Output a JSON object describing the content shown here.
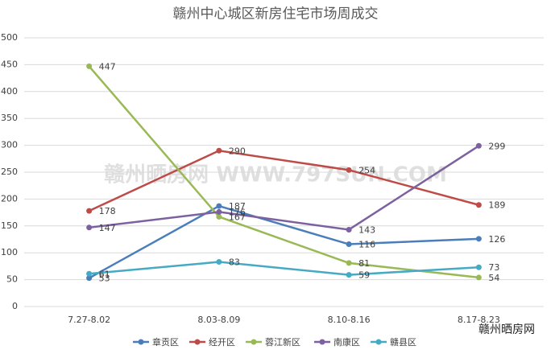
{
  "chart_data": {
    "type": "line",
    "title": "赣州中心城区新房住宅市场周成交",
    "categories": [
      "7.27-8.02",
      "8.03-8.09",
      "8.10-8.16",
      "8.17-8.23"
    ],
    "series": [
      {
        "name": "章贡区",
        "color": "#4a7ebb",
        "values": [
          53,
          187,
          116,
          126
        ]
      },
      {
        "name": "经开区",
        "color": "#be4b48",
        "values": [
          178,
          290,
          254,
          189
        ]
      },
      {
        "name": "蓉江新区",
        "color": "#98b954",
        "values": [
          447,
          167,
          81,
          54
        ]
      },
      {
        "name": "南康区",
        "color": "#7d60a0",
        "values": [
          147,
          176,
          143,
          299
        ]
      },
      {
        "name": "赣县区",
        "color": "#46aac5",
        "values": [
          61,
          83,
          59,
          73
        ]
      }
    ],
    "ylim": [
      0,
      500
    ],
    "yticks": [
      0,
      50,
      100,
      150,
      200,
      250,
      300,
      350,
      400,
      450,
      500
    ],
    "grid": true,
    "legend": "bottom"
  },
  "watermark": "赣州晒房网 WWW.797SUN.COM",
  "brand": "赣州晒房网"
}
